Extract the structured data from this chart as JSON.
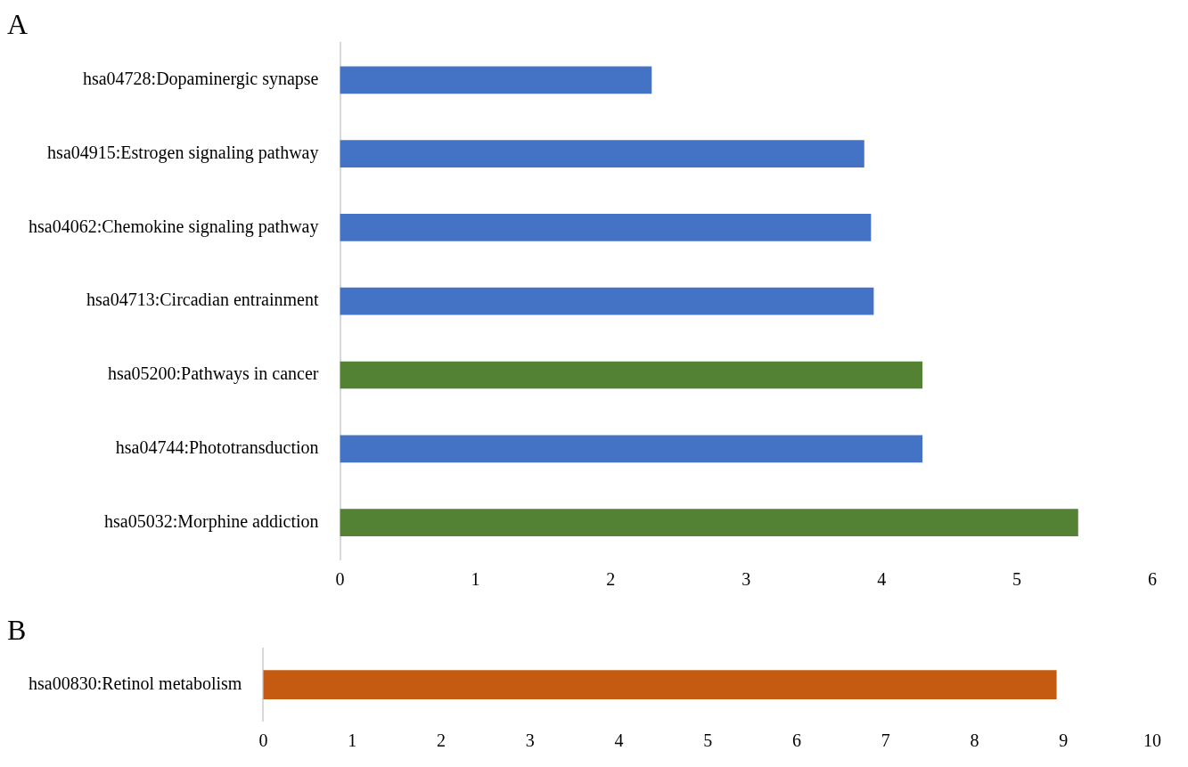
{
  "chart_data": [
    {
      "type": "bar",
      "title": "A",
      "orientation": "horizontal",
      "categories": [
        "hsa04728:Dopaminergic synapse",
        "hsa04915:Estrogen signaling pathway",
        "hsa04062:Chemokine signaling pathway",
        "hsa04713:Circadian entrainment",
        "hsa05200:Pathways in cancer",
        "hsa04744:Phototransduction",
        "hsa05032:Morphine addiction"
      ],
      "values": [
        2.3,
        3.87,
        3.92,
        3.94,
        4.3,
        4.3,
        5.45
      ],
      "colors": [
        "#4472c4",
        "#4472c4",
        "#4472c4",
        "#4472c4",
        "#548235",
        "#4472c4",
        "#548235"
      ],
      "xlim": [
        0,
        6
      ],
      "xticks": [
        0,
        1,
        2,
        3,
        4,
        5,
        6
      ],
      "grid": false,
      "legend": false
    },
    {
      "type": "bar",
      "title": "B",
      "orientation": "horizontal",
      "categories": [
        "hsa00830:Retinol metabolism"
      ],
      "values": [
        8.92
      ],
      "colors": [
        "#c55a11"
      ],
      "xlim": [
        0,
        10
      ],
      "xticks": [
        0,
        1,
        2,
        3,
        4,
        5,
        6,
        7,
        8,
        9,
        10
      ],
      "grid": false,
      "legend": false
    }
  ]
}
